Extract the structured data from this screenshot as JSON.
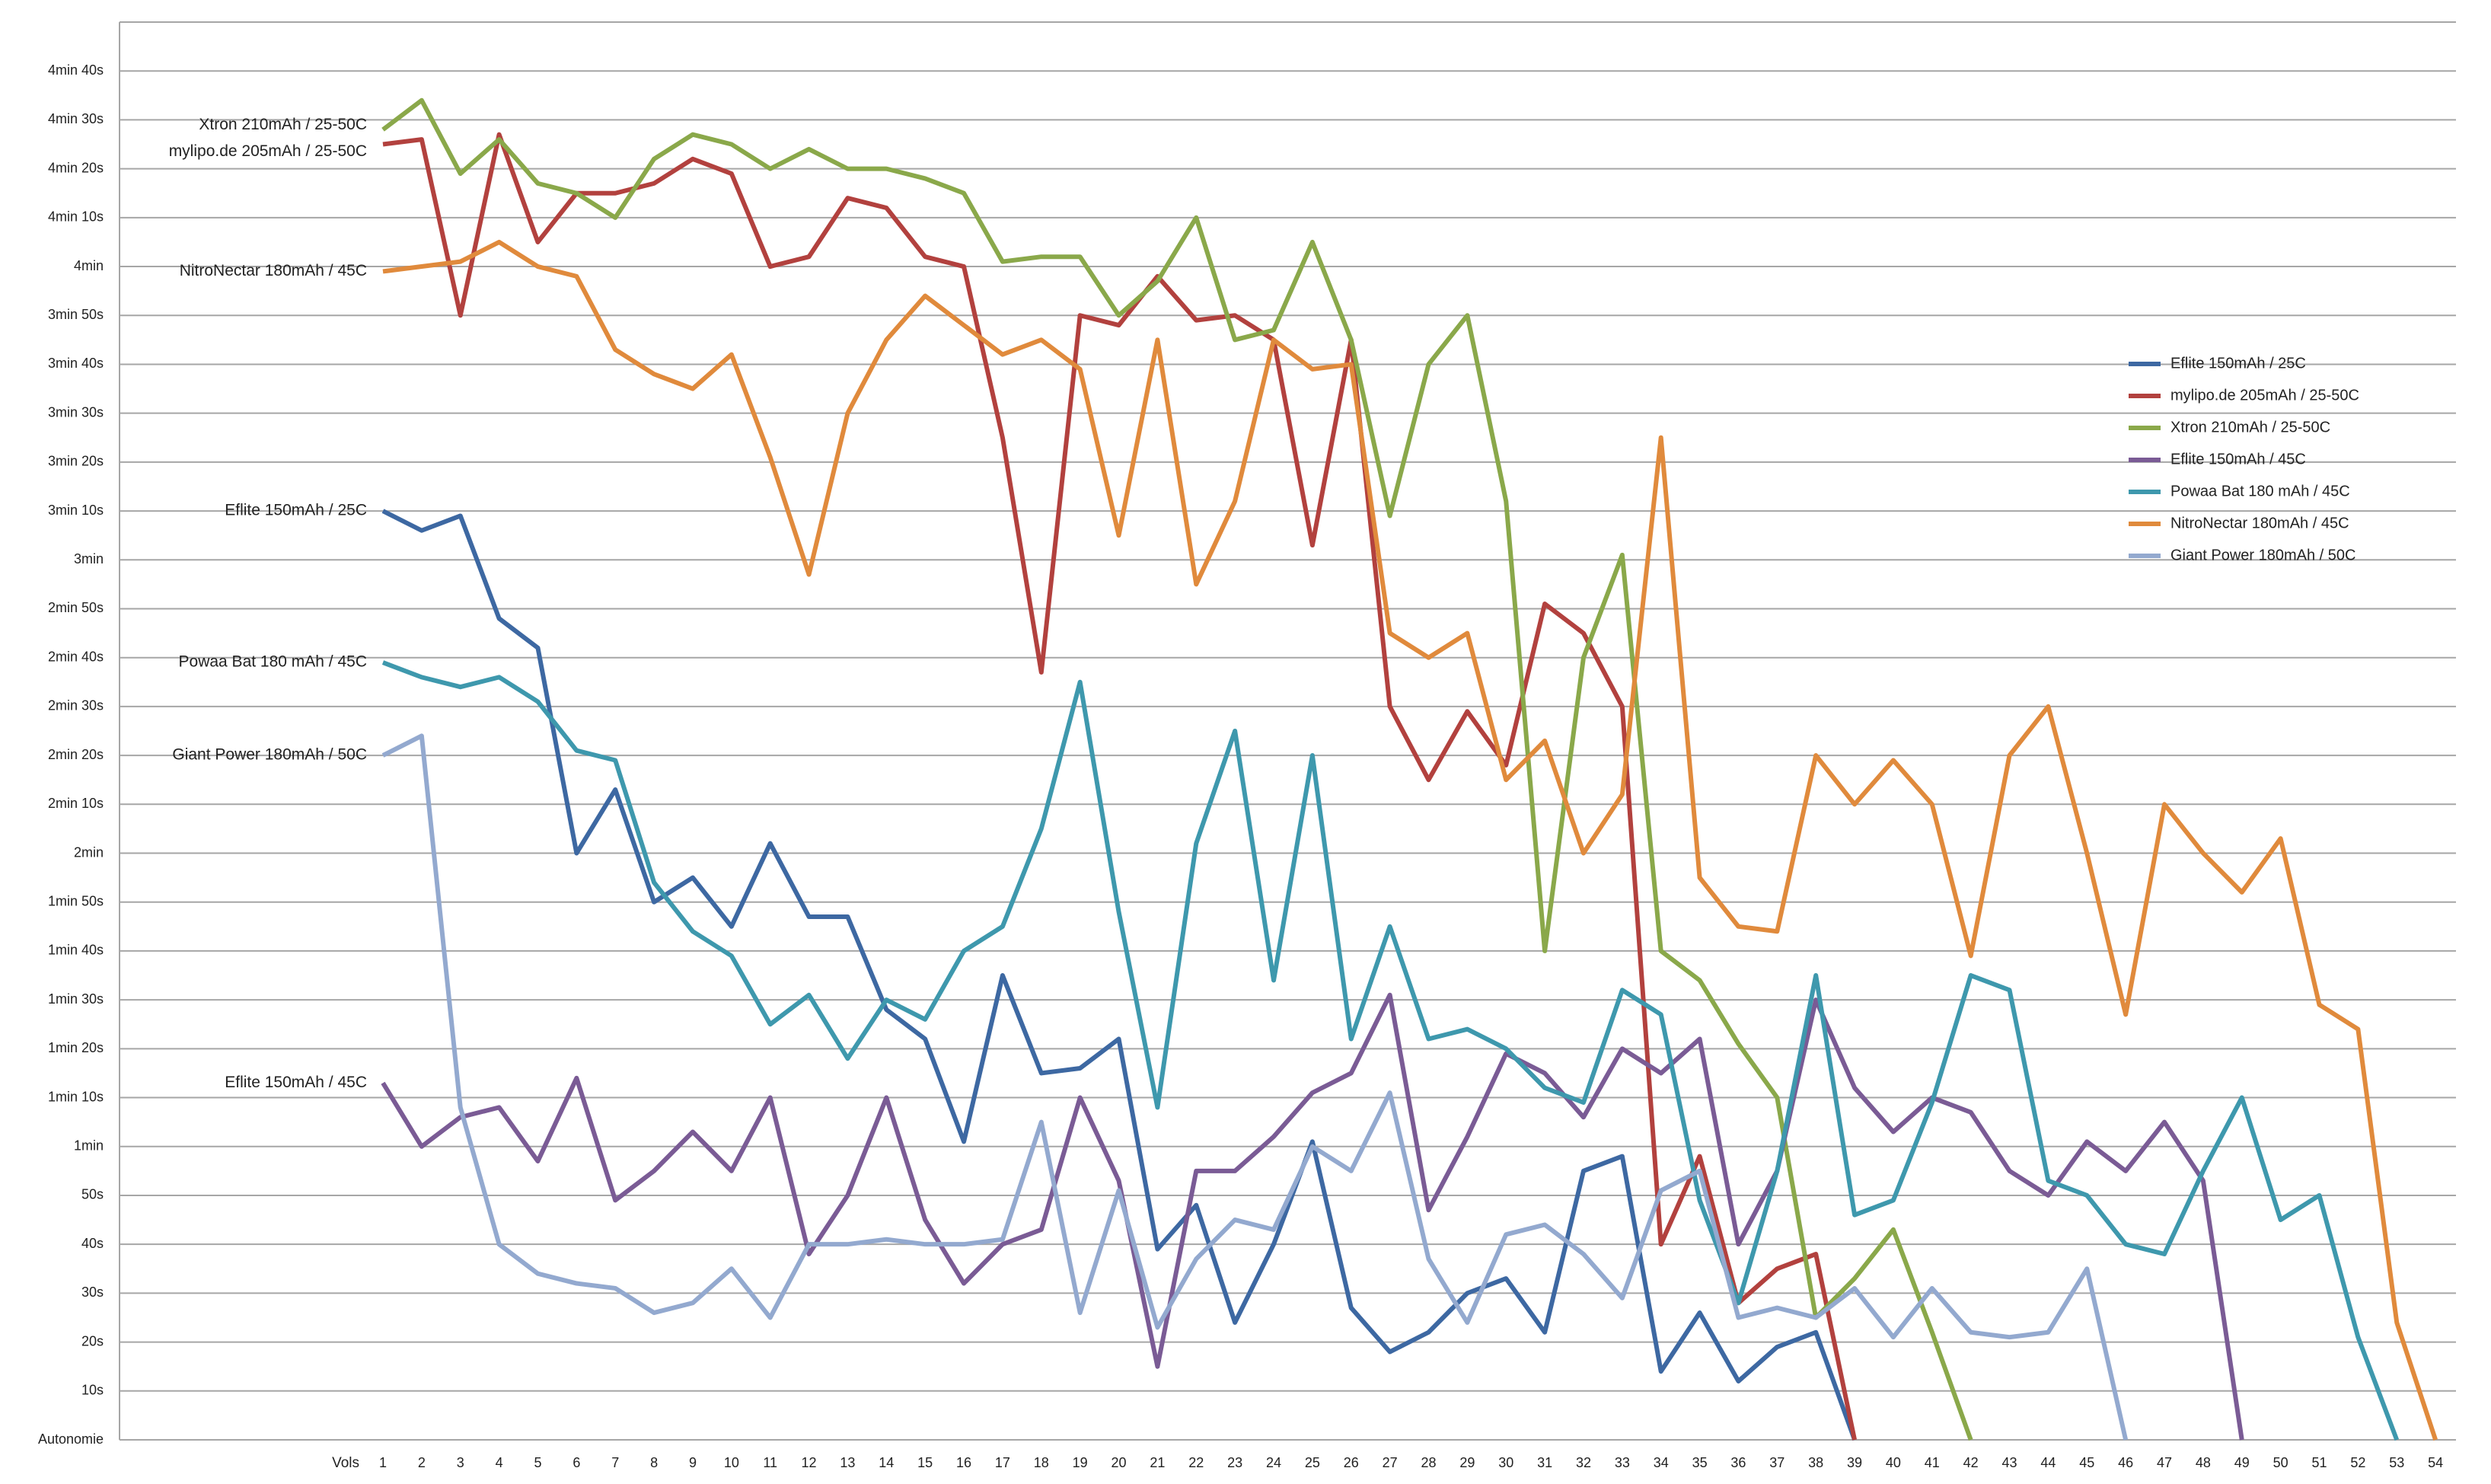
{
  "chart_data": {
    "type": "line",
    "xlabel": "Vols",
    "categories": [
      "1",
      "2",
      "3",
      "4",
      "5",
      "6",
      "7",
      "8",
      "9",
      "10",
      "11",
      "12",
      "13",
      "14",
      "15",
      "16",
      "17",
      "18",
      "19",
      "20",
      "21",
      "22",
      "23",
      "24",
      "25",
      "26",
      "27",
      "28",
      "29",
      "30",
      "31",
      "32",
      "33",
      "34",
      "35",
      "36",
      "37",
      "38",
      "39",
      "40",
      "41",
      "42",
      "43",
      "44",
      "45",
      "46",
      "47",
      "48",
      "49",
      "50",
      "51",
      "52",
      "53",
      "54"
    ],
    "ylim": [
      0,
      290
    ],
    "yticks": [
      {
        "value": 0,
        "label": "Autonomie"
      },
      {
        "value": 10,
        "label": "10s"
      },
      {
        "value": 20,
        "label": "20s"
      },
      {
        "value": 30,
        "label": "30s"
      },
      {
        "value": 40,
        "label": "40s"
      },
      {
        "value": 50,
        "label": "50s"
      },
      {
        "value": 60,
        "label": "1min"
      },
      {
        "value": 70,
        "label": "1min 10s"
      },
      {
        "value": 80,
        "label": "1min 20s"
      },
      {
        "value": 90,
        "label": "1min 30s"
      },
      {
        "value": 100,
        "label": "1min 40s"
      },
      {
        "value": 110,
        "label": "1min 50s"
      },
      {
        "value": 120,
        "label": "2min"
      },
      {
        "value": 130,
        "label": "2min 10s"
      },
      {
        "value": 140,
        "label": "2min 20s"
      },
      {
        "value": 150,
        "label": "2min 30s"
      },
      {
        "value": 160,
        "label": "2min 40s"
      },
      {
        "value": 170,
        "label": "2min 50s"
      },
      {
        "value": 180,
        "label": "3min"
      },
      {
        "value": 190,
        "label": "3min 10s"
      },
      {
        "value": 200,
        "label": "3min 20s"
      },
      {
        "value": 210,
        "label": "3min 30s"
      },
      {
        "value": 220,
        "label": "3min 40s"
      },
      {
        "value": 230,
        "label": "3min 50s"
      },
      {
        "value": 240,
        "label": "4min"
      },
      {
        "value": 250,
        "label": "4min 10s"
      },
      {
        "value": 260,
        "label": "4min 20s"
      },
      {
        "value": 270,
        "label": "4min 30s"
      },
      {
        "value": 280,
        "label": "4min 40s"
      }
    ],
    "grid": true,
    "legend": "right",
    "series": [
      {
        "name": "Eflite 150mAh / 25C",
        "color": "#3d68a2",
        "values": [
          190,
          186,
          189,
          168,
          162,
          120,
          133,
          110,
          115,
          105,
          122,
          107,
          107,
          88,
          82,
          61,
          95,
          75,
          76,
          82,
          39,
          48,
          24,
          40,
          61,
          27,
          18,
          22,
          30,
          33,
          22,
          55,
          58,
          14,
          26,
          12,
          19,
          22,
          0,
          null,
          null,
          null,
          null,
          null,
          null,
          null,
          null,
          null,
          null,
          null,
          null,
          null,
          null,
          null
        ]
      },
      {
        "name": "mylipo.de 205mAh / 25-50C",
        "color": "#b2413e",
        "values": [
          265,
          266,
          230,
          267,
          245,
          255,
          255,
          257,
          262,
          259,
          240,
          242,
          254,
          252,
          242,
          240,
          205,
          157,
          230,
          228,
          238,
          229,
          230,
          225,
          183,
          225,
          150,
          135,
          149,
          138,
          171,
          165,
          150,
          40,
          58,
          28,
          35,
          38,
          0,
          null,
          null,
          null,
          null,
          null,
          null,
          null,
          null,
          null,
          null,
          null,
          null,
          null,
          null,
          null
        ]
      },
      {
        "name": "Xtron 210mAh / 25-50C",
        "color": "#8aa84a",
        "values": [
          268,
          274,
          259,
          266,
          257,
          255,
          250,
          262,
          267,
          265,
          260,
          264,
          260,
          260,
          258,
          255,
          241,
          242,
          242,
          230,
          237,
          250,
          225,
          227,
          245,
          225,
          189,
          220,
          230,
          192,
          100,
          160,
          181,
          100,
          94,
          81,
          70,
          25,
          33,
          43,
          22,
          0,
          null,
          null,
          null,
          null,
          null,
          null,
          null,
          null,
          null,
          null,
          null,
          null
        ]
      },
      {
        "name": "Eflite 150mAh / 45C",
        "color": "#7a5b95",
        "values": [
          73,
          60,
          66,
          68,
          57,
          74,
          49,
          55,
          63,
          55,
          70,
          38,
          50,
          70,
          45,
          32,
          40,
          43,
          70,
          53,
          15,
          55,
          55,
          62,
          71,
          75,
          91,
          47,
          62,
          79,
          75,
          66,
          80,
          75,
          82,
          40,
          55,
          90,
          72,
          63,
          70,
          67,
          55,
          50,
          61,
          55,
          65,
          53,
          0,
          null,
          null,
          null,
          null,
          null
        ]
      },
      {
        "name": "Powaa Bat 180 mAh / 45C",
        "color": "#3e98ad",
        "values": [
          159,
          156,
          154,
          156,
          151,
          141,
          139,
          114,
          104,
          99,
          85,
          91,
          78,
          90,
          86,
          100,
          105,
          125,
          155,
          108,
          68,
          122,
          145,
          94,
          140,
          82,
          105,
          82,
          84,
          80,
          72,
          69,
          92,
          87,
          49,
          28,
          55,
          95,
          46,
          49,
          69,
          95,
          92,
          53,
          50,
          40,
          38,
          55,
          70,
          45,
          50,
          21,
          0,
          null
        ]
      },
      {
        "name": "NitroNectar 180mAh / 45C",
        "color": "#e08a3c",
        "values": [
          239,
          240,
          241,
          245,
          240,
          238,
          223,
          218,
          215,
          222,
          201,
          177,
          210,
          225,
          234,
          228,
          222,
          225,
          219,
          185,
          225,
          175,
          192,
          225,
          219,
          220,
          165,
          160,
          165,
          135,
          143,
          120,
          132,
          205,
          115,
          105,
          104,
          140,
          130,
          139,
          130,
          99,
          140,
          150,
          120,
          87,
          130,
          120,
          112,
          123,
          89,
          84,
          24,
          0
        ]
      },
      {
        "name": "Giant Power 180mAh / 50C",
        "color": "#93a9cf",
        "values": [
          140,
          144,
          68,
          40,
          34,
          32,
          31,
          26,
          28,
          35,
          25,
          40,
          40,
          41,
          40,
          40,
          41,
          65,
          26,
          51,
          23,
          37,
          45,
          43,
          60,
          55,
          71,
          37,
          24,
          42,
          44,
          38,
          29,
          51,
          55,
          25,
          27,
          25,
          31,
          21,
          31,
          22,
          21,
          22,
          35,
          0,
          null,
          null,
          null,
          null,
          null,
          null,
          null,
          null
        ]
      }
    ]
  }
}
